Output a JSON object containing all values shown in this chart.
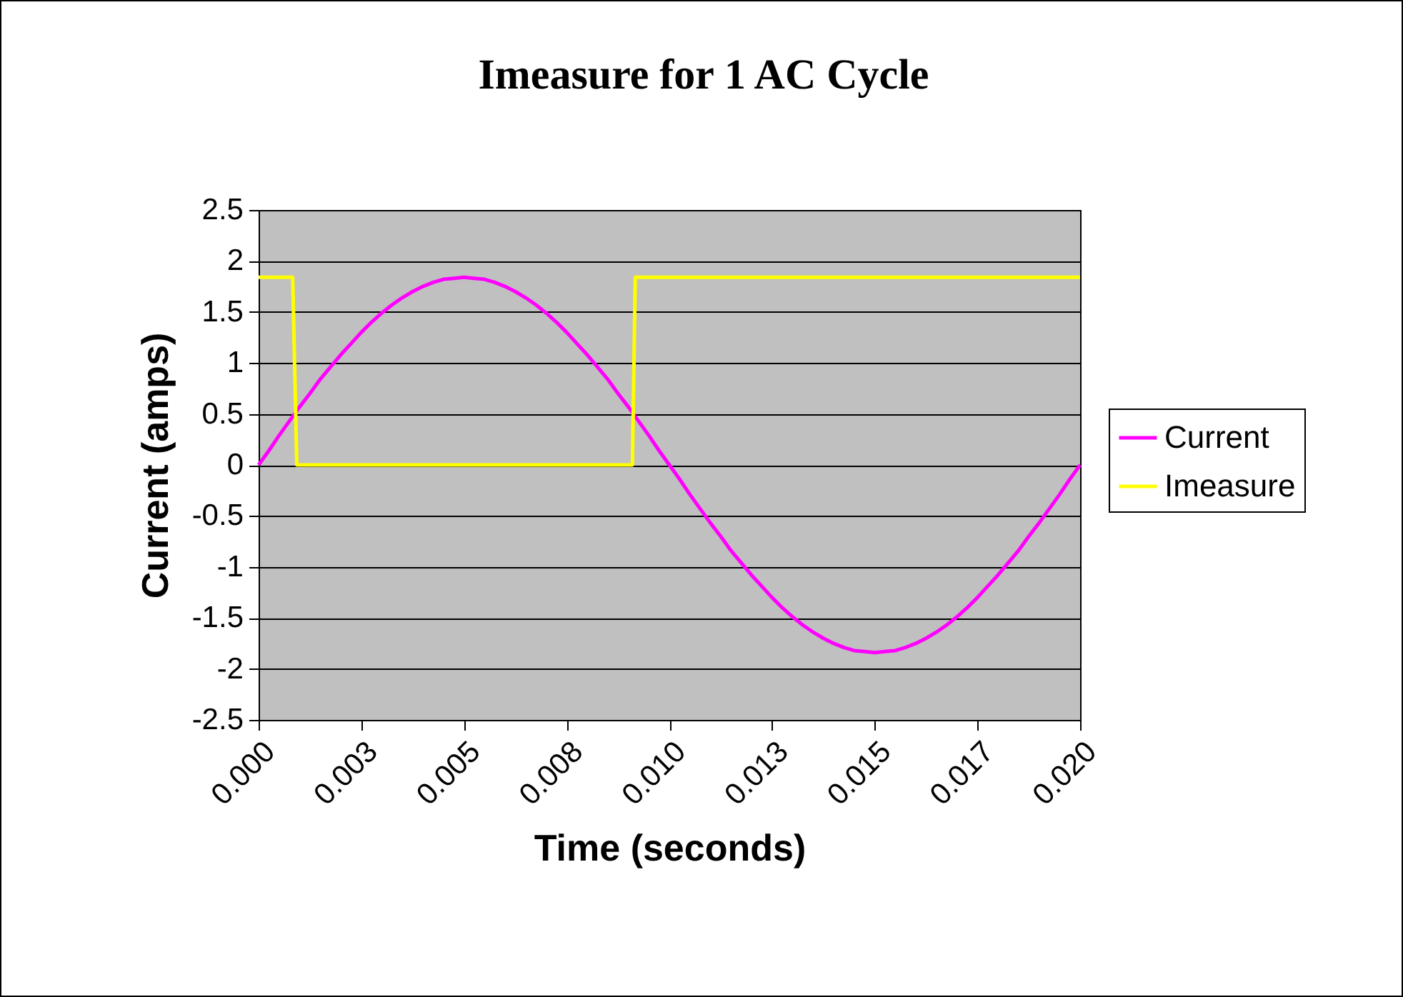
{
  "chart_data": {
    "type": "line",
    "title": "Imeasure for 1 AC Cycle",
    "xlabel": "Time (seconds)",
    "ylabel": "Current (amps)",
    "x": [
      0,
      0.00025,
      0.0005,
      0.00075,
      0.001,
      0.00125,
      0.0015,
      0.00175,
      0.002,
      0.00225,
      0.0025,
      0.00275,
      0.003,
      0.00325,
      0.0035,
      0.00375,
      0.004,
      0.00425,
      0.0045,
      0.00475,
      0.005,
      0.00525,
      0.0055,
      0.00575,
      0.006,
      0.00625,
      0.0065,
      0.00675,
      0.007,
      0.00725,
      0.0075,
      0.00775,
      0.008,
      0.00825,
      0.0085,
      0.00875,
      0.009,
      0.00925,
      0.0095,
      0.00975,
      0.01,
      0.01025,
      0.0105,
      0.01075,
      0.011,
      0.01125,
      0.0115,
      0.01175,
      0.012,
      0.01225,
      0.0125,
      0.01275,
      0.013,
      0.01325,
      0.0135,
      0.01375,
      0.014,
      0.01425,
      0.0145,
      0.01475,
      0.015,
      0.01525,
      0.0155,
      0.01575,
      0.016,
      0.01625,
      0.0165,
      0.01675,
      0.017,
      0.01725,
      0.0175,
      0.01775,
      0.018,
      0.01825,
      0.0185,
      0.01875,
      0.019,
      0.01925,
      0.0195,
      0.01975,
      0.02
    ],
    "series": [
      {
        "name": "Current",
        "color": "#ff00ff",
        "values": [
          0,
          0.14,
          0.29,
          0.43,
          0.57,
          0.7,
          0.84,
          0.96,
          1.08,
          1.19,
          1.3,
          1.4,
          1.49,
          1.57,
          1.64,
          1.7,
          1.75,
          1.79,
          1.82,
          1.83,
          1.84,
          1.83,
          1.82,
          1.79,
          1.75,
          1.7,
          1.64,
          1.57,
          1.49,
          1.4,
          1.3,
          1.19,
          1.08,
          0.96,
          0.84,
          0.7,
          0.57,
          0.43,
          0.29,
          0.14,
          0,
          -0.14,
          -0.29,
          -0.43,
          -0.57,
          -0.7,
          -0.84,
          -0.96,
          -1.08,
          -1.19,
          -1.3,
          -1.4,
          -1.49,
          -1.57,
          -1.64,
          -1.7,
          -1.75,
          -1.79,
          -1.82,
          -1.83,
          -1.84,
          -1.83,
          -1.82,
          -1.79,
          -1.75,
          -1.7,
          -1.64,
          -1.57,
          -1.49,
          -1.4,
          -1.3,
          -1.19,
          -1.08,
          -0.96,
          -0.84,
          -0.7,
          -0.57,
          -0.43,
          -0.29,
          -0.14,
          0
        ]
      },
      {
        "name": "Imeasure",
        "color": "#ffff00",
        "x": [
          0,
          0.00083,
          0.00093,
          0.0091,
          0.00917,
          0.02
        ],
        "values": [
          1.84,
          1.84,
          0,
          0,
          1.84,
          1.84
        ]
      }
    ],
    "xlim": [
      0,
      0.02
    ],
    "xticks": [
      {
        "value": 0,
        "label": "0.000"
      },
      {
        "value": 0.0025,
        "label": "0.003"
      },
      {
        "value": 0.005,
        "label": "0.005"
      },
      {
        "value": 0.0075,
        "label": "0.008"
      },
      {
        "value": 0.01,
        "label": "0.010"
      },
      {
        "value": 0.0125,
        "label": "0.013"
      },
      {
        "value": 0.015,
        "label": "0.015"
      },
      {
        "value": 0.0175,
        "label": "0.017"
      },
      {
        "value": 0.02,
        "label": "0.020"
      }
    ],
    "ylim": [
      -2.5,
      2.5
    ],
    "yticks": [
      -2.5,
      -2,
      -1.5,
      -1,
      -0.5,
      0,
      0.5,
      1,
      1.5,
      2,
      2.5
    ],
    "grid": "y",
    "legend": "right",
    "marker": "none",
    "line_style": "solid"
  }
}
